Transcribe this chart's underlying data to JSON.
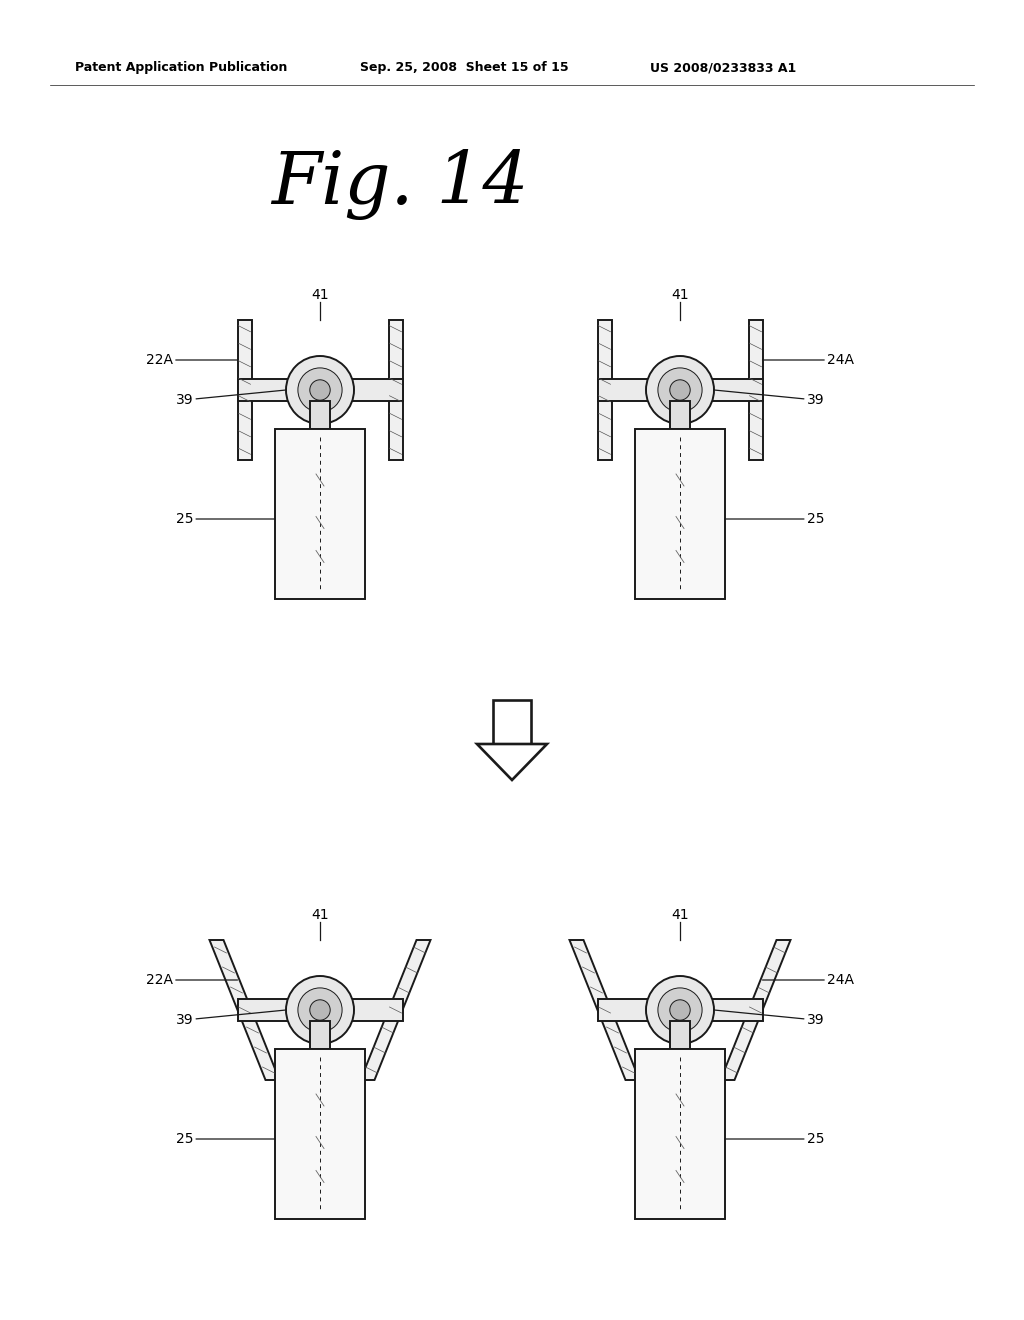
{
  "background_color": "#ffffff",
  "header_text": "Patent Application Publication",
  "header_date": "Sep. 25, 2008  Sheet 15 of 15",
  "header_patent": "US 2008/0233833 A1",
  "fig_title": "Fig. 14",
  "line_color": "#1a1a1a",
  "lw": 1.4,
  "thin_lw": 0.7,
  "gray": "#aaaaaa"
}
